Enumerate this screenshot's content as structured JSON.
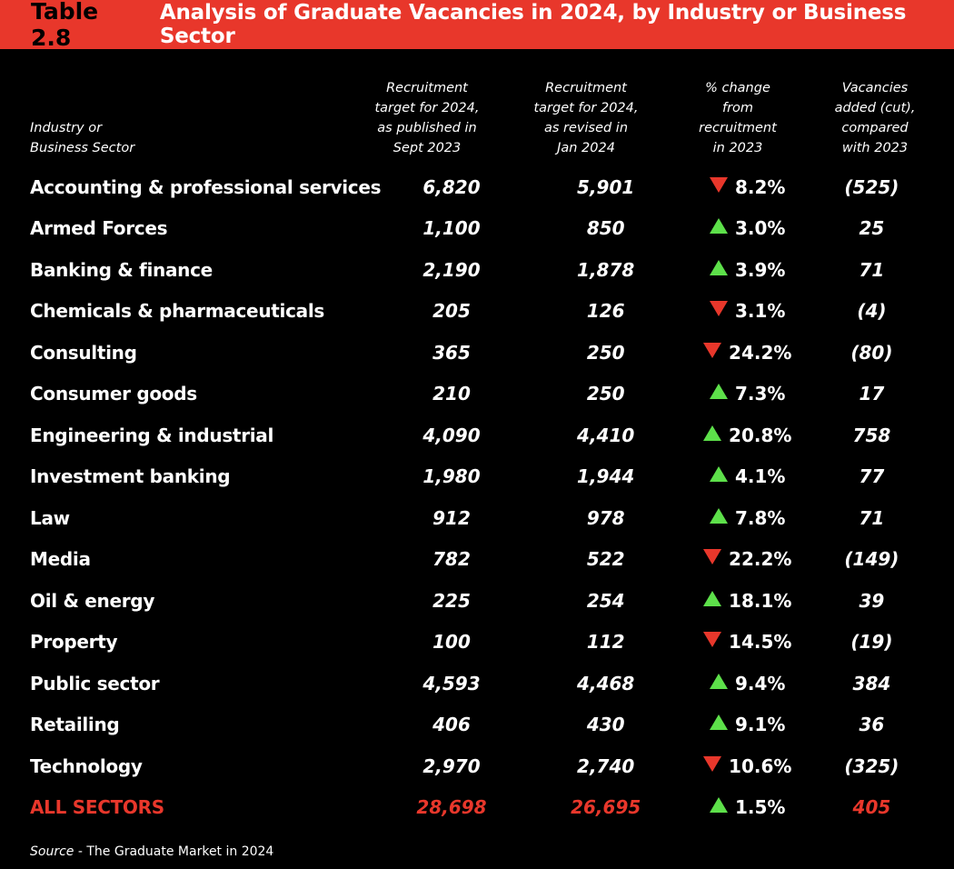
{
  "banner": {
    "table_number": "Table 2.8",
    "title": "Analysis of Graduate Vacancies in 2024, by Industry or Business Sector"
  },
  "colors": {
    "banner": "#e8372b",
    "up": "#5de04a",
    "down": "#e8372b",
    "total": "#e8372b"
  },
  "chart_data": {
    "type": "table",
    "title": "Analysis of Graduate Vacancies in 2024, by Industry or Business Sector",
    "columns": [
      {
        "key": "sector",
        "lines": [
          "Industry or",
          "Business Sector"
        ]
      },
      {
        "key": "target_sept2023",
        "lines": [
          "Recruitment",
          "target for 2024,",
          "as published in",
          "Sept 2023"
        ]
      },
      {
        "key": "target_jan2024",
        "lines": [
          "Recruitment",
          "target for 2024,",
          "as revised in",
          "Jan 2024"
        ]
      },
      {
        "key": "pct_change",
        "lines": [
          "% change",
          "from",
          "recruitment",
          "in 2023"
        ]
      },
      {
        "key": "vacancies_added",
        "lines": [
          "Vacancies",
          "added (cut),",
          "compared",
          "with 2023"
        ]
      }
    ],
    "rows": [
      {
        "sector": "Accounting & professional services",
        "target_sept2023": "6,820",
        "target_jan2024": "5,901",
        "direction": "down",
        "pct_change": "8.2%",
        "vacancies_added": "(525)"
      },
      {
        "sector": "Armed Forces",
        "target_sept2023": "1,100",
        "target_jan2024": "850",
        "direction": "up",
        "pct_change": "3.0%",
        "vacancies_added": "25"
      },
      {
        "sector": "Banking & finance",
        "target_sept2023": "2,190",
        "target_jan2024": "1,878",
        "direction": "up",
        "pct_change": "3.9%",
        "vacancies_added": "71"
      },
      {
        "sector": "Chemicals & pharmaceuticals",
        "target_sept2023": "205",
        "target_jan2024": "126",
        "direction": "down",
        "pct_change": "3.1%",
        "vacancies_added": "(4)"
      },
      {
        "sector": "Consulting",
        "target_sept2023": "365",
        "target_jan2024": "250",
        "direction": "down",
        "pct_change": "24.2%",
        "vacancies_added": "(80)"
      },
      {
        "sector": "Consumer goods",
        "target_sept2023": "210",
        "target_jan2024": "250",
        "direction": "up",
        "pct_change": "7.3%",
        "vacancies_added": "17"
      },
      {
        "sector": "Engineering & industrial",
        "target_sept2023": "4,090",
        "target_jan2024": "4,410",
        "direction": "up",
        "pct_change": "20.8%",
        "vacancies_added": "758"
      },
      {
        "sector": "Investment banking",
        "target_sept2023": "1,980",
        "target_jan2024": "1,944",
        "direction": "up",
        "pct_change": "4.1%",
        "vacancies_added": "77"
      },
      {
        "sector": "Law",
        "target_sept2023": "912",
        "target_jan2024": "978",
        "direction": "up",
        "pct_change": "7.8%",
        "vacancies_added": "71"
      },
      {
        "sector": "Media",
        "target_sept2023": "782",
        "target_jan2024": "522",
        "direction": "down",
        "pct_change": "22.2%",
        "vacancies_added": "(149)"
      },
      {
        "sector": "Oil & energy",
        "target_sept2023": "225",
        "target_jan2024": "254",
        "direction": "up",
        "pct_change": "18.1%",
        "vacancies_added": "39"
      },
      {
        "sector": "Property",
        "target_sept2023": "100",
        "target_jan2024": "112",
        "direction": "down",
        "pct_change": "14.5%",
        "vacancies_added": "(19)"
      },
      {
        "sector": "Public sector",
        "target_sept2023": "4,593",
        "target_jan2024": "4,468",
        "direction": "up",
        "pct_change": "9.4%",
        "vacancies_added": "384"
      },
      {
        "sector": "Retailing",
        "target_sept2023": "406",
        "target_jan2024": "430",
        "direction": "up",
        "pct_change": "9.1%",
        "vacancies_added": "36"
      },
      {
        "sector": "Technology",
        "target_sept2023": "2,970",
        "target_jan2024": "2,740",
        "direction": "down",
        "pct_change": "10.6%",
        "vacancies_added": "(325)"
      }
    ],
    "total": {
      "sector": "ALL SECTORS",
      "target_sept2023": "28,698",
      "target_jan2024": "26,695",
      "direction": "up",
      "pct_change": "1.5%",
      "vacancies_added": "405"
    }
  },
  "source": {
    "label": "Source",
    "text": " - The Graduate Market in 2024"
  }
}
